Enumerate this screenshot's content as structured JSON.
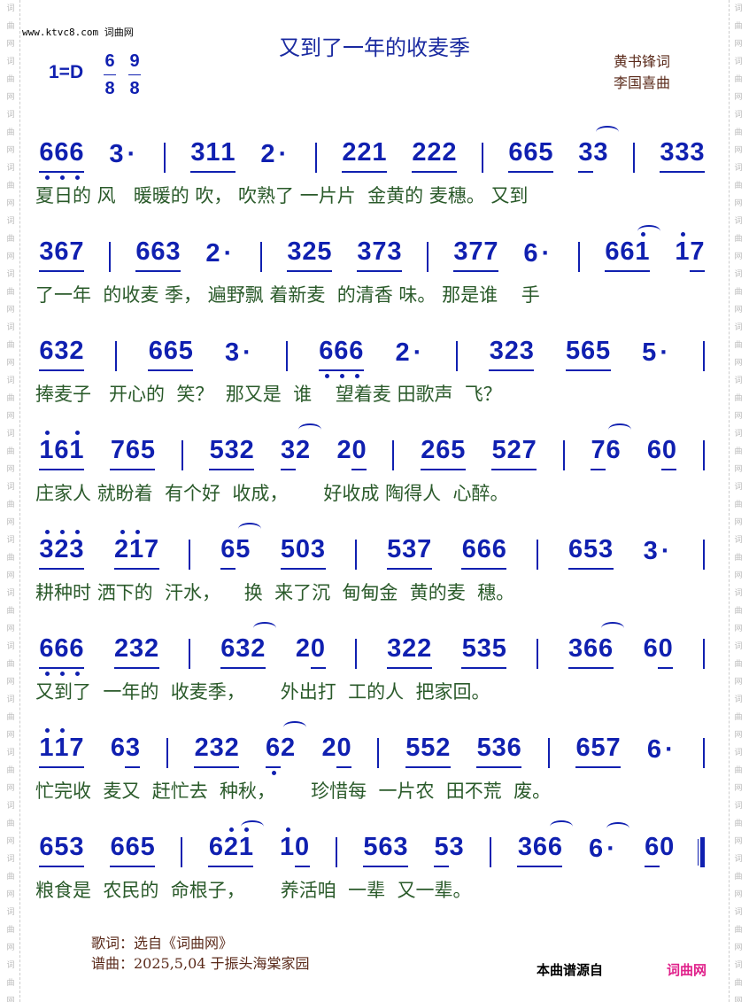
{
  "watermark": "词曲网",
  "site": "www.ktvc8.com 词曲网",
  "title": "又到了一年的收麦季",
  "key": "1=D",
  "time_signatures": [
    {
      "num": "6",
      "den": "8"
    },
    {
      "num": "9",
      "den": "8"
    }
  ],
  "lyricist": "黄书锋词",
  "composer": "李国喜曲",
  "colors": {
    "notes": "#1020b0",
    "lyrics": "#2a5a2a",
    "credits": "#5a2a1a",
    "brand": "#e0208a"
  },
  "rows": [
    {
      "notes": [
        {
          "t": "666",
          "u": "111",
          "d": "bbb"
        },
        {
          "t": "3·",
          "u": "00"
        },
        "|",
        {
          "t": "311",
          "u": "111"
        },
        {
          "t": "2·",
          "u": "00"
        },
        "|",
        {
          "t": "221",
          "u": "111"
        },
        {
          "t": "222",
          "u": "111"
        },
        "|",
        {
          "t": "665",
          "u": "111"
        },
        {
          "t": "33",
          "u": "10",
          "arc": true
        },
        "|",
        {
          "t": "333",
          "u": "111"
        }
      ],
      "lyrics": "夏日的 风   暖暖的 吹， 吹熟了 一片片  金黄的 麦穗。 又到"
    },
    {
      "notes": [
        {
          "t": "367",
          "u": "111"
        },
        "|",
        {
          "t": "663",
          "u": "111"
        },
        {
          "t": "2·",
          "u": "00"
        },
        "|",
        {
          "t": "325",
          "u": "111"
        },
        {
          "t": "373",
          "u": "111"
        },
        "|",
        {
          "t": "377",
          "u": "111"
        },
        {
          "t": "6·",
          "u": "00"
        },
        "|",
        {
          "t": "661",
          "u": "111",
          "d": "..a",
          "arc": true
        },
        {
          "t": "17",
          "u": "01",
          "d": "a."
        }
      ],
      "lyrics": "了一年  的收麦 季， 遍野飘 着新麦  的清香 味。 那是谁    手"
    },
    {
      "notes": [
        {
          "t": "632",
          "u": "111"
        },
        "|",
        {
          "t": "665",
          "u": "111"
        },
        {
          "t": "3·",
          "u": "00"
        },
        "|",
        {
          "t": "666",
          "u": "111",
          "d": "bbb"
        },
        {
          "t": "2·",
          "u": "00"
        },
        "|",
        {
          "t": "323",
          "u": "111"
        },
        {
          "t": "565",
          "u": "111"
        },
        {
          "t": "5·",
          "u": "00"
        },
        "|"
      ],
      "lyrics": "捧麦子   开心的  笑？  那又是  谁    望着麦 田歌声  飞？"
    },
    {
      "notes": [
        {
          "t": "161",
          "u": "111",
          "d": "a.a"
        },
        {
          "t": "765",
          "u": "111"
        },
        "|",
        {
          "t": "532",
          "u": "111"
        },
        {
          "t": "32",
          "u": "10",
          "arc": true
        },
        {
          "t": "20",
          "u": "01"
        },
        "|",
        {
          "t": "265",
          "u": "111"
        },
        {
          "t": "527",
          "u": "111"
        },
        "|",
        {
          "t": "76",
          "u": "10",
          "arc": true
        },
        {
          "t": "60",
          "u": "01"
        },
        "|"
      ],
      "lyrics": "庄家人 就盼着  有个好  收成，      好收成 陶得人  心醉。"
    },
    {
      "notes": [
        {
          "t": "323",
          "u": "111",
          "d": "aaa"
        },
        {
          "t": "217",
          "u": "111",
          "d": "aa."
        },
        "|",
        {
          "t": "65",
          "u": "10",
          "arc": true
        },
        {
          "t": "503",
          "u": "111"
        },
        "|",
        {
          "t": "537",
          "u": "111"
        },
        {
          "t": "666",
          "u": "111"
        },
        "|",
        {
          "t": "653",
          "u": "111"
        },
        {
          "t": "3·",
          "u": "00"
        },
        "|"
      ],
      "lyrics": "耕种时 洒下的  汗水，    换  来了沉  甸甸金  黄的麦  穗。"
    },
    {
      "notes": [
        {
          "t": "666",
          "u": "111",
          "d": "bbb"
        },
        {
          "t": "232",
          "u": "111"
        },
        "|",
        {
          "t": "632",
          "u": "111",
          "arc": true
        },
        {
          "t": "20",
          "u": "01"
        },
        "|",
        {
          "t": "322",
          "u": "111"
        },
        {
          "t": "535",
          "u": "111"
        },
        "|",
        {
          "t": "366",
          "u": "111",
          "arc": true
        },
        {
          "t": "60",
          "u": "01"
        },
        "|"
      ],
      "lyrics": "又到了  一年的  收麦季，      外出打  工的人  把家回。"
    },
    {
      "notes": [
        {
          "t": "117",
          "u": "111",
          "d": "aa."
        },
        {
          "t": "63",
          "u": "01"
        },
        "|",
        {
          "t": "232",
          "u": "111"
        },
        {
          "t": "62",
          "u": "10",
          "d": "b.",
          "arc": true
        },
        {
          "t": "20",
          "u": "01"
        },
        "|",
        {
          "t": "552",
          "u": "111"
        },
        {
          "t": "536",
          "u": "111"
        },
        "|",
        {
          "t": "657",
          "u": "111"
        },
        {
          "t": "6·",
          "u": "00"
        },
        "|"
      ],
      "lyrics": "忙完收  麦又  赶忙去  种秋，      珍惜每  一片农  田不荒  废。"
    },
    {
      "notes": [
        {
          "t": "653",
          "u": "111"
        },
        {
          "t": "665",
          "u": "111"
        },
        "|",
        {
          "t": "621",
          "u": "111",
          "d": ".aa",
          "arc": true
        },
        {
          "t": "10",
          "u": "01",
          "d": "a."
        },
        "|",
        {
          "t": "563",
          "u": "111"
        },
        {
          "t": "53",
          "u": "10"
        },
        "|",
        {
          "t": "366",
          "u": "111",
          "arc": true
        },
        {
          "t": "6·",
          "u": "00",
          "arc": true
        },
        {
          "t": "60",
          "u": "10"
        },
        "||"
      ],
      "lyrics": "粮食是  农民的  命根子，      养活咱  一辈  又一辈。"
    }
  ],
  "footer": {
    "lyrics_source": "歌词：选自《词曲网》",
    "score_note": "谱曲：2025,5,04 于振头海棠家园",
    "source_label": "本曲谱源自",
    "source_site": "词曲网"
  }
}
